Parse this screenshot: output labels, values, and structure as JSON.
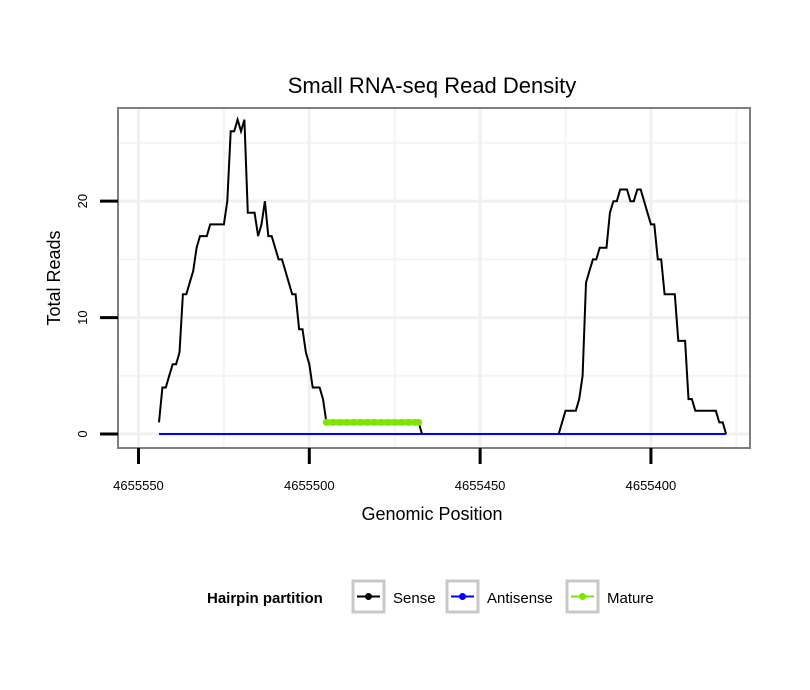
{
  "chart_data": {
    "type": "line",
    "title": "Small RNA-seq Read Density",
    "xlabel": "Genomic Position",
    "ylabel": "Total Reads",
    "x_reversed": true,
    "xlim": [
      4655556,
      4655371
    ],
    "ylim": [
      -1.2,
      28
    ],
    "x_ticks": [
      {
        "value": 4655550,
        "label": "4655550"
      },
      {
        "value": 4655500,
        "label": "4655500"
      },
      {
        "value": 4655450,
        "label": "4655450"
      },
      {
        "value": 4655400,
        "label": "4655400"
      }
    ],
    "y_ticks": [
      {
        "value": 0,
        "label": "0"
      },
      {
        "value": 10,
        "label": "10"
      },
      {
        "value": 20,
        "label": "20"
      }
    ],
    "grid": true,
    "legend": {
      "title": "Hairpin partition",
      "position": "bottom",
      "entries": [
        "Sense",
        "Antisense",
        "Mature"
      ]
    },
    "series": [
      {
        "name": "Sense",
        "color": "#000000",
        "points": [
          [
            4655544,
            1
          ],
          [
            4655543,
            4
          ],
          [
            4655542,
            4
          ],
          [
            4655541,
            5
          ],
          [
            4655540,
            6
          ],
          [
            4655539,
            6
          ],
          [
            4655538,
            7
          ],
          [
            4655537,
            12
          ],
          [
            4655536,
            12
          ],
          [
            4655535,
            13
          ],
          [
            4655534,
            14
          ],
          [
            4655533,
            16
          ],
          [
            4655532,
            17
          ],
          [
            4655531,
            17
          ],
          [
            4655530,
            17
          ],
          [
            4655529,
            18
          ],
          [
            4655528,
            18
          ],
          [
            4655527,
            18
          ],
          [
            4655526,
            18
          ],
          [
            4655525,
            18
          ],
          [
            4655524,
            20
          ],
          [
            4655523,
            26
          ],
          [
            4655522,
            26
          ],
          [
            4655521,
            27
          ],
          [
            4655520,
            26
          ],
          [
            4655519,
            27
          ],
          [
            4655518,
            19
          ],
          [
            4655517,
            19
          ],
          [
            4655516,
            19
          ],
          [
            4655515,
            17
          ],
          [
            4655514,
            18
          ],
          [
            4655513,
            20
          ],
          [
            4655512,
            17
          ],
          [
            4655511,
            17
          ],
          [
            4655510,
            16
          ],
          [
            4655509,
            15
          ],
          [
            4655508,
            15
          ],
          [
            4655507,
            14
          ],
          [
            4655506,
            13
          ],
          [
            4655505,
            12
          ],
          [
            4655504,
            12
          ],
          [
            4655503,
            9
          ],
          [
            4655502,
            9
          ],
          [
            4655501,
            7
          ],
          [
            4655500,
            6
          ],
          [
            4655499,
            4
          ],
          [
            4655498,
            4
          ],
          [
            4655497,
            4
          ],
          [
            4655496,
            3
          ],
          [
            4655495,
            1
          ],
          [
            4655494,
            1
          ],
          [
            4655493,
            1
          ],
          [
            4655492,
            1
          ],
          [
            4655491,
            1
          ],
          [
            4655490,
            1
          ],
          [
            4655489,
            1
          ],
          [
            4655488,
            1
          ],
          [
            4655487,
            1
          ],
          [
            4655486,
            1
          ],
          [
            4655485,
            1
          ],
          [
            4655484,
            1
          ],
          [
            4655483,
            1
          ],
          [
            4655482,
            1
          ],
          [
            4655481,
            1
          ],
          [
            4655480,
            1
          ],
          [
            4655479,
            1
          ],
          [
            4655478,
            1
          ],
          [
            4655477,
            1
          ],
          [
            4655476,
            1
          ],
          [
            4655475,
            1
          ],
          [
            4655474,
            1
          ],
          [
            4655473,
            1
          ],
          [
            4655472,
            1
          ],
          [
            4655471,
            1
          ],
          [
            4655470,
            1
          ],
          [
            4655469,
            1
          ],
          [
            4655468,
            1
          ],
          [
            4655467,
            0
          ],
          [
            4655466,
            0
          ],
          [
            4655460,
            0
          ],
          [
            4655450,
            0
          ],
          [
            4655440,
            0
          ],
          [
            4655427,
            0
          ],
          [
            4655426,
            1
          ],
          [
            4655425,
            2
          ],
          [
            4655424,
            2
          ],
          [
            4655423,
            2
          ],
          [
            4655422,
            2
          ],
          [
            4655421,
            3
          ],
          [
            4655420,
            5
          ],
          [
            4655419,
            13
          ],
          [
            4655418,
            14
          ],
          [
            4655417,
            15
          ],
          [
            4655416,
            15
          ],
          [
            4655415,
            16
          ],
          [
            4655414,
            16
          ],
          [
            4655413,
            16
          ],
          [
            4655412,
            19
          ],
          [
            4655411,
            20
          ],
          [
            4655410,
            20
          ],
          [
            4655409,
            21
          ],
          [
            4655408,
            21
          ],
          [
            4655407,
            21
          ],
          [
            4655406,
            20
          ],
          [
            4655405,
            20
          ],
          [
            4655404,
            21
          ],
          [
            4655403,
            21
          ],
          [
            4655402,
            20
          ],
          [
            4655401,
            19
          ],
          [
            4655400,
            18
          ],
          [
            4655399,
            18
          ],
          [
            4655398,
            15
          ],
          [
            4655397,
            15
          ],
          [
            4655396,
            12
          ],
          [
            4655395,
            12
          ],
          [
            4655394,
            12
          ],
          [
            4655393,
            12
          ],
          [
            4655392,
            8
          ],
          [
            4655391,
            8
          ],
          [
            4655390,
            8
          ],
          [
            4655389,
            3
          ],
          [
            4655388,
            3
          ],
          [
            4655387,
            2
          ],
          [
            4655386,
            2
          ],
          [
            4655385,
            2
          ],
          [
            4655384,
            2
          ],
          [
            4655383,
            2
          ],
          [
            4655382,
            2
          ],
          [
            4655381,
            2
          ],
          [
            4655380,
            1
          ],
          [
            4655379,
            1
          ],
          [
            4655378,
            0
          ]
        ]
      },
      {
        "name": "Antisense",
        "color": "#0000ff",
        "points": [
          [
            4655544,
            0
          ],
          [
            4655378,
            0
          ]
        ]
      },
      {
        "name": "Mature",
        "color": "#7ce600",
        "points": [
          [
            4655495,
            1
          ],
          [
            4655493,
            1
          ],
          [
            4655491,
            1
          ],
          [
            4655489,
            1
          ],
          [
            4655487,
            1
          ],
          [
            4655485,
            1
          ],
          [
            4655483,
            1
          ],
          [
            4655481,
            1
          ],
          [
            4655479,
            1
          ],
          [
            4655477,
            1
          ],
          [
            4655475,
            1
          ],
          [
            4655473,
            1
          ],
          [
            4655471,
            1
          ],
          [
            4655469,
            1
          ],
          [
            4655468,
            1
          ]
        ]
      }
    ]
  }
}
